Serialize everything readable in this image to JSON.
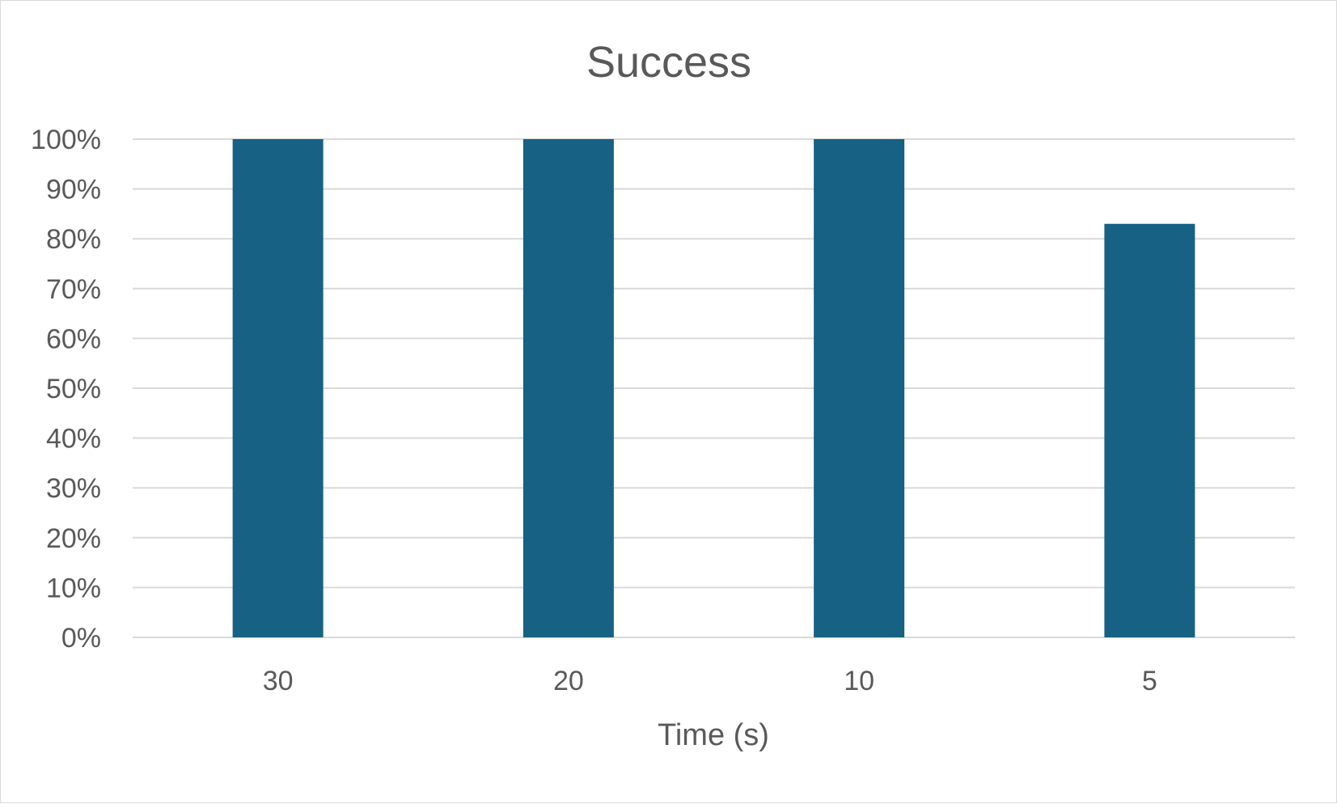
{
  "chart_data": {
    "type": "bar",
    "title": "Success",
    "xlabel": "Time (s)",
    "ylabel": "",
    "categories": [
      "30",
      "20",
      "10",
      "5"
    ],
    "values": [
      1.0,
      1.0,
      1.0,
      0.83
    ],
    "ylim": [
      0,
      1
    ],
    "y_ticks": [
      "0%",
      "10%",
      "20%",
      "30%",
      "40%",
      "50%",
      "60%",
      "70%",
      "80%",
      "90%",
      "100%"
    ],
    "grid": true,
    "legend": "none",
    "colors": {
      "bar": "#176184",
      "gridline": "#d9d9d9",
      "text": "#595959"
    }
  }
}
